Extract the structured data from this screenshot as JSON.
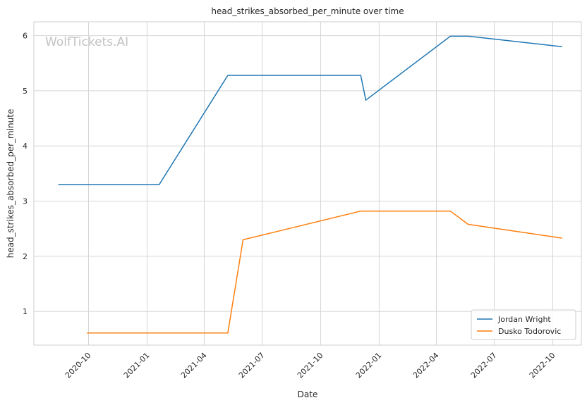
{
  "chart_data": {
    "type": "line",
    "title": "head_strikes_absorbed_per_minute over time",
    "xlabel": "Date",
    "ylabel": "head_strikes_absorbed_per_minute",
    "watermark": "WolfTickets.AI",
    "x_ticks": [
      "2020-10",
      "2021-01",
      "2021-04",
      "2021-07",
      "2021-10",
      "2022-01",
      "2022-04",
      "2022-07",
      "2022-10"
    ],
    "y_ticks": [
      1,
      2,
      3,
      4,
      5,
      6
    ],
    "xlim": [
      "2020-07-07",
      "2022-11-15"
    ],
    "ylim": [
      0.39,
      6.25
    ],
    "grid": true,
    "legend_position": "lower-right",
    "series": [
      {
        "name": "Jordan Wright",
        "color": "#1f77b4",
        "points": [
          {
            "x": "2020-08-15",
            "y": 3.3
          },
          {
            "x": "2021-01-20",
            "y": 3.3
          },
          {
            "x": "2021-05-08",
            "y": 5.28
          },
          {
            "x": "2021-12-03",
            "y": 5.28
          },
          {
            "x": "2021-12-11",
            "y": 4.83
          },
          {
            "x": "2022-04-23",
            "y": 5.99
          },
          {
            "x": "2022-05-21",
            "y": 5.99
          },
          {
            "x": "2022-10-15",
            "y": 5.8
          }
        ]
      },
      {
        "name": "Dusko Todorovic",
        "color": "#ff7f0e",
        "points": [
          {
            "x": "2020-09-29",
            "y": 0.61
          },
          {
            "x": "2021-05-08",
            "y": 0.61
          },
          {
            "x": "2021-06-01",
            "y": 2.3
          },
          {
            "x": "2021-12-03",
            "y": 2.82
          },
          {
            "x": "2022-04-23",
            "y": 2.82
          },
          {
            "x": "2022-05-21",
            "y": 2.58
          },
          {
            "x": "2022-10-15",
            "y": 2.33
          }
        ]
      }
    ]
  }
}
